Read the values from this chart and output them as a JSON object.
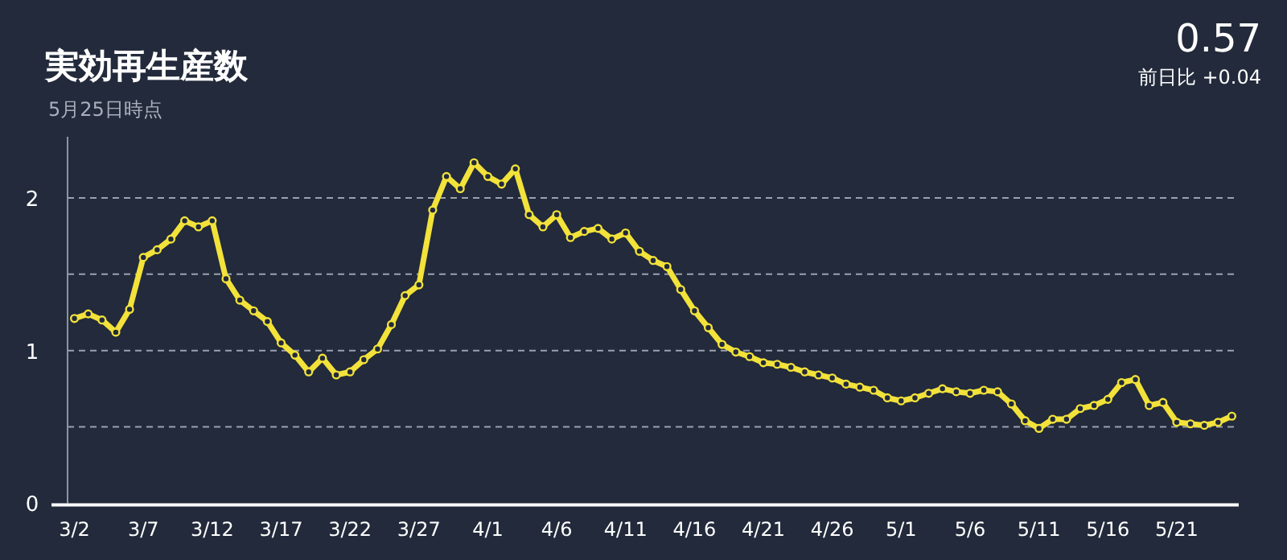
{
  "chart_data": {
    "type": "line",
    "title": "実効再生産数",
    "subtitle": "5月25日時点",
    "annotations": [
      "0.57",
      "前日比 +0.04"
    ],
    "x": [
      "--03-02",
      "--03-03",
      "--03-04",
      "--03-05",
      "--03-06",
      "--03-07",
      "--03-08",
      "--03-09",
      "--03-10",
      "--03-11",
      "--03-12",
      "--03-13",
      "--03-14",
      "--03-15",
      "--03-16",
      "--03-17",
      "--03-18",
      "--03-19",
      "--03-20",
      "--03-21",
      "--03-22",
      "--03-23",
      "--03-24",
      "--03-25",
      "--03-26",
      "--03-27",
      "--03-28",
      "--03-29",
      "--03-30",
      "--03-31",
      "--04-01",
      "--04-02",
      "--04-03",
      "--04-04",
      "--04-05",
      "--04-06",
      "--04-07",
      "--04-08",
      "--04-09",
      "--04-10",
      "--04-11",
      "--04-12",
      "--04-13",
      "--04-14",
      "--04-15",
      "--04-16",
      "--04-17",
      "--04-18",
      "--04-19",
      "--04-20",
      "--04-21",
      "--04-22",
      "--04-23",
      "--04-24",
      "--04-25",
      "--04-26",
      "--04-27",
      "--04-28",
      "--04-29",
      "--04-30",
      "--05-01",
      "--05-02",
      "--05-03",
      "--05-04",
      "--05-05",
      "--05-06",
      "--05-07",
      "--05-08",
      "--05-09",
      "--05-10",
      "--05-11",
      "--05-12",
      "--05-13",
      "--05-14",
      "--05-15",
      "--05-16",
      "--05-17",
      "--05-18",
      "--05-19",
      "--05-20",
      "--05-21",
      "--05-22",
      "--05-23",
      "--05-24",
      "--05-25"
    ],
    "series": [
      {
        "color": "#f2e23a",
        "values": [
          1.21,
          1.24,
          1.2,
          1.12,
          1.27,
          1.61,
          1.66,
          1.73,
          1.85,
          1.81,
          1.85,
          1.47,
          1.33,
          1.26,
          1.19,
          1.05,
          0.97,
          0.86,
          0.95,
          0.84,
          0.86,
          0.94,
          1.01,
          1.17,
          1.36,
          1.43,
          1.92,
          2.14,
          2.06,
          2.23,
          2.14,
          2.09,
          2.19,
          1.89,
          1.81,
          1.89,
          1.74,
          1.78,
          1.8,
          1.73,
          1.77,
          1.65,
          1.59,
          1.55,
          1.4,
          1.26,
          1.15,
          1.04,
          0.99,
          0.96,
          0.92,
          0.91,
          0.89,
          0.86,
          0.84,
          0.82,
          0.78,
          0.76,
          0.74,
          0.69,
          0.67,
          0.69,
          0.72,
          0.75,
          0.73,
          0.72,
          0.74,
          0.73,
          0.65,
          0.54,
          0.49,
          0.55,
          0.55,
          0.62,
          0.64,
          0.68,
          0.79,
          0.81,
          0.64,
          0.66,
          0.53,
          0.52,
          0.51,
          0.53,
          0.57
        ]
      }
    ],
    "xlim": [
      "--03-01T12:00",
      "--05-25T12:00"
    ],
    "ylim": [
      0,
      2.4
    ],
    "xticks": [
      {
        "value": "--03-02",
        "label": "3/2"
      },
      {
        "value": "--03-07",
        "label": "3/7"
      },
      {
        "value": "--03-12",
        "label": "3/12"
      },
      {
        "value": "--03-17",
        "label": "3/17"
      },
      {
        "value": "--03-22",
        "label": "3/22"
      },
      {
        "value": "--03-27",
        "label": "3/27"
      },
      {
        "value": "--04-01",
        "label": "4/1"
      },
      {
        "value": "--04-06",
        "label": "4/6"
      },
      {
        "value": "--04-11",
        "label": "4/11"
      },
      {
        "value": "--04-16",
        "label": "4/16"
      },
      {
        "value": "--04-21",
        "label": "4/21"
      },
      {
        "value": "--04-26",
        "label": "4/26"
      },
      {
        "value": "--05-01",
        "label": "5/1"
      },
      {
        "value": "--05-06",
        "label": "5/6"
      },
      {
        "value": "--05-11",
        "label": "5/11"
      },
      {
        "value": "--05-16",
        "label": "5/16"
      },
      {
        "value": "--05-21",
        "label": "5/21"
      }
    ],
    "yticks": [
      0,
      {
        "value": 0.5,
        "label": null
      },
      1,
      {
        "value": 1.5,
        "label": null
      },
      2
    ],
    "grid": "y",
    "marker": "circle",
    "line_style": "solid"
  }
}
